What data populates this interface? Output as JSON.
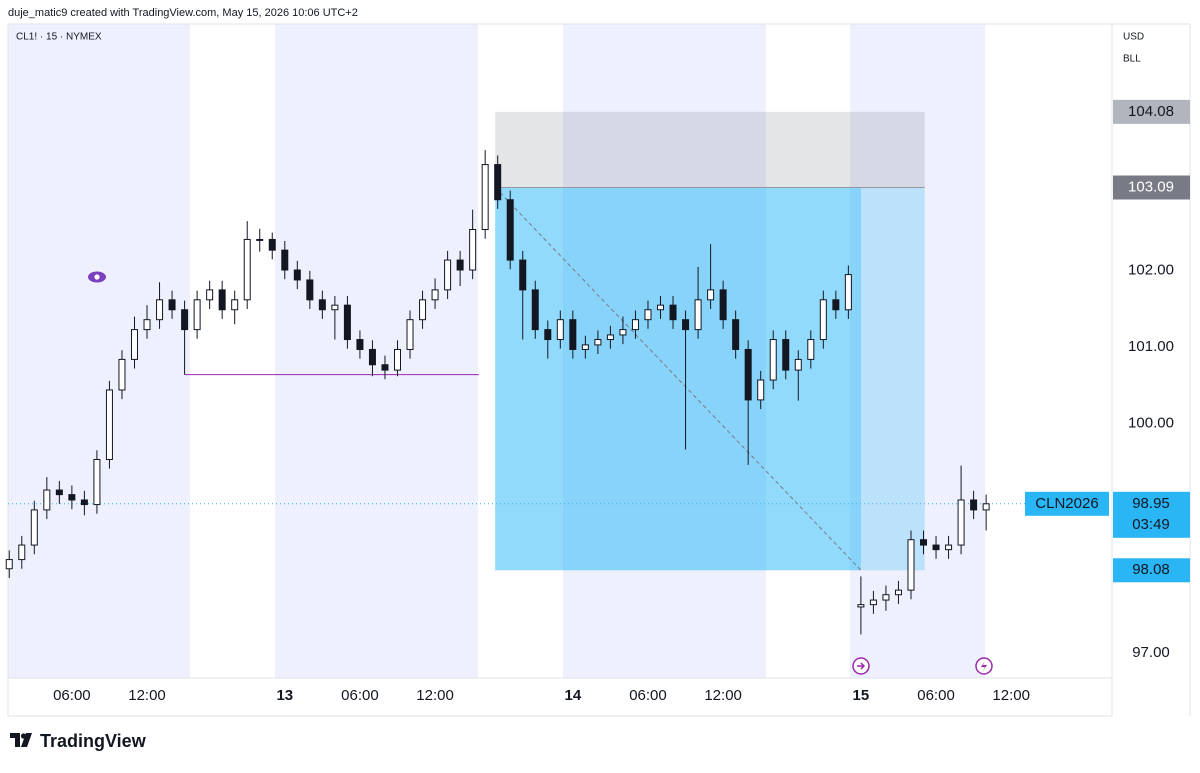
{
  "header": {
    "caption": "duje_matic9 created with TradingView.com, May 15, 2026 10:06 UTC+2"
  },
  "footer": {
    "brand": "TradingView"
  },
  "chart_data": {
    "type": "candlestick",
    "symbol_label": "CL1! · 15 · NYMEX",
    "currency": "USD",
    "unit": "BLL",
    "x": [
      -22,
      -21,
      -20,
      -19,
      -18,
      -17,
      -16,
      -15,
      -14,
      -13,
      -12,
      -11,
      -10,
      -9,
      -8,
      -7,
      -6,
      -5,
      -4,
      -3,
      -2,
      -1,
      0,
      1,
      2,
      3,
      4,
      5,
      6,
      7,
      8,
      9,
      10,
      11,
      12,
      13,
      14,
      15,
      16,
      17,
      18,
      19,
      20,
      21,
      22,
      23,
      24,
      25,
      26,
      27,
      28,
      29,
      30,
      31,
      32,
      33,
      34,
      35,
      36,
      37,
      38,
      39,
      40,
      41,
      42,
      43,
      44,
      45,
      46,
      47,
      48,
      49,
      50,
      51,
      52,
      53,
      54,
      55,
      56
    ],
    "open": [
      98.1,
      98.22,
      98.41,
      98.87,
      99.13,
      99.07,
      99.0,
      98.94,
      99.53,
      100.44,
      100.84,
      101.23,
      101.36,
      101.62,
      101.49,
      101.23,
      101.62,
      101.75,
      101.49,
      101.62,
      102.41,
      102.41,
      102.27,
      102.01,
      101.88,
      101.62,
      101.49,
      101.55,
      101.1,
      100.97,
      100.77,
      100.7,
      100.97,
      101.36,
      101.62,
      101.75,
      102.14,
      102.01,
      102.54,
      103.39,
      102.93,
      102.14,
      101.75,
      101.23,
      101.1,
      101.36,
      100.97,
      101.03,
      101.1,
      101.16,
      101.23,
      101.36,
      101.49,
      101.55,
      101.36,
      101.23,
      101.62,
      101.75,
      101.36,
      100.97,
      100.31,
      100.57,
      101.1,
      100.7,
      100.84,
      101.1,
      101.62,
      101.49,
      97.6,
      97.63,
      97.69,
      97.76,
      97.82,
      98.48,
      98.41,
      98.35,
      98.41,
      99.0,
      98.87
    ],
    "high": [
      98.34,
      98.53,
      98.99,
      99.3,
      99.25,
      99.19,
      99.12,
      99.65,
      100.56,
      100.96,
      101.4,
      101.55,
      101.85,
      101.74,
      101.61,
      101.74,
      101.87,
      101.87,
      101.74,
      102.65,
      102.55,
      102.5,
      102.39,
      102.13,
      102.0,
      101.74,
      101.67,
      101.67,
      101.22,
      101.09,
      100.89,
      101.09,
      101.48,
      101.74,
      101.9,
      102.26,
      102.26,
      102.8,
      103.58,
      103.51,
      103.05,
      102.26,
      101.87,
      101.35,
      101.48,
      101.48,
      101.15,
      101.22,
      101.28,
      101.4,
      101.48,
      101.61,
      101.67,
      101.67,
      101.48,
      102.05,
      102.35,
      101.87,
      101.48,
      101.09,
      100.69,
      101.22,
      101.22,
      100.96,
      101.22,
      101.74,
      101.74,
      102.07,
      98.0,
      97.81,
      97.88,
      97.94,
      98.6,
      98.6,
      98.53,
      98.53,
      99.45,
      99.12,
      99.07
    ],
    "low": [
      97.98,
      98.1,
      98.29,
      98.75,
      98.95,
      98.88,
      98.8,
      98.82,
      99.41,
      100.32,
      100.72,
      101.11,
      101.24,
      101.37,
      100.64,
      101.11,
      101.5,
      101.37,
      101.3,
      101.5,
      102.25,
      102.15,
      101.89,
      101.76,
      101.5,
      101.37,
      101.1,
      100.98,
      100.85,
      100.62,
      100.58,
      100.62,
      100.85,
      101.24,
      101.5,
      101.63,
      101.8,
      101.89,
      102.42,
      102.81,
      102.02,
      101.1,
      101.11,
      100.85,
      100.98,
      100.85,
      100.85,
      100.91,
      100.98,
      101.04,
      101.11,
      101.24,
      101.37,
      101.24,
      99.66,
      101.11,
      101.5,
      101.24,
      100.85,
      99.46,
      100.19,
      100.45,
      100.58,
      100.3,
      100.72,
      100.98,
      101.37,
      101.37,
      97.24,
      97.51,
      97.55,
      97.64,
      97.7,
      98.29,
      98.23,
      98.23,
      98.29,
      98.75,
      98.6
    ],
    "close": [
      98.22,
      98.41,
      98.87,
      99.13,
      99.07,
      99.0,
      98.94,
      99.53,
      100.44,
      100.84,
      101.23,
      101.36,
      101.62,
      101.49,
      101.23,
      101.62,
      101.75,
      101.49,
      101.62,
      102.41,
      102.41,
      102.27,
      102.01,
      101.88,
      101.62,
      101.49,
      101.55,
      101.1,
      100.97,
      100.77,
      100.7,
      100.97,
      101.36,
      101.62,
      101.75,
      102.14,
      102.01,
      102.54,
      103.39,
      102.93,
      102.14,
      101.75,
      101.23,
      101.1,
      101.36,
      100.97,
      101.03,
      101.1,
      101.16,
      101.23,
      101.36,
      101.49,
      101.55,
      101.36,
      101.23,
      101.62,
      101.75,
      101.36,
      100.97,
      100.31,
      100.57,
      101.1,
      100.7,
      100.84,
      101.1,
      101.62,
      101.49,
      101.95,
      97.63,
      97.69,
      97.76,
      97.82,
      98.48,
      98.41,
      98.35,
      98.41,
      99.0,
      98.87,
      98.95
    ],
    "xlim": [
      -22.1,
      66.05
    ],
    "ylim": [
      96.67,
      105.23
    ],
    "xticks": [
      {
        "value": -17,
        "label": "06:00"
      },
      {
        "value": -11,
        "label": "12:00"
      },
      0,
      {
        "value": 6,
        "label": "06:00"
      },
      {
        "value": 12,
        "label": "12:00"
      },
      {
        "value": 23,
        "label": "14"
      },
      {
        "value": 29,
        "label": "06:00"
      },
      {
        "value": 35,
        "label": "12:00"
      },
      {
        "value": 46,
        "label": "15"
      },
      {
        "value": 52,
        "label": "06:00"
      },
      {
        "value": 58,
        "label": "12:00"
      }
    ],
    "yticks": [
      {
        "value": 97,
        "label": "97.00"
      },
      {
        "value": 100,
        "label": "100.00"
      },
      {
        "value": 101,
        "label": "101.00"
      },
      {
        "value": 102,
        "label": "102.00"
      }
    ],
    "day_label_zero": "13",
    "level_line": {
      "y": 100.64,
      "x": [
        -8,
        15.5
      ]
    },
    "position": {
      "x_start": 16.8,
      "x_exit": 46,
      "x_end": 51.1,
      "stop": 104.08,
      "entry": 103.09,
      "target": 98.08
    },
    "last_price": {
      "value": 98.95,
      "symbol": "CLN2026",
      "countdown": "03:49"
    }
  }
}
